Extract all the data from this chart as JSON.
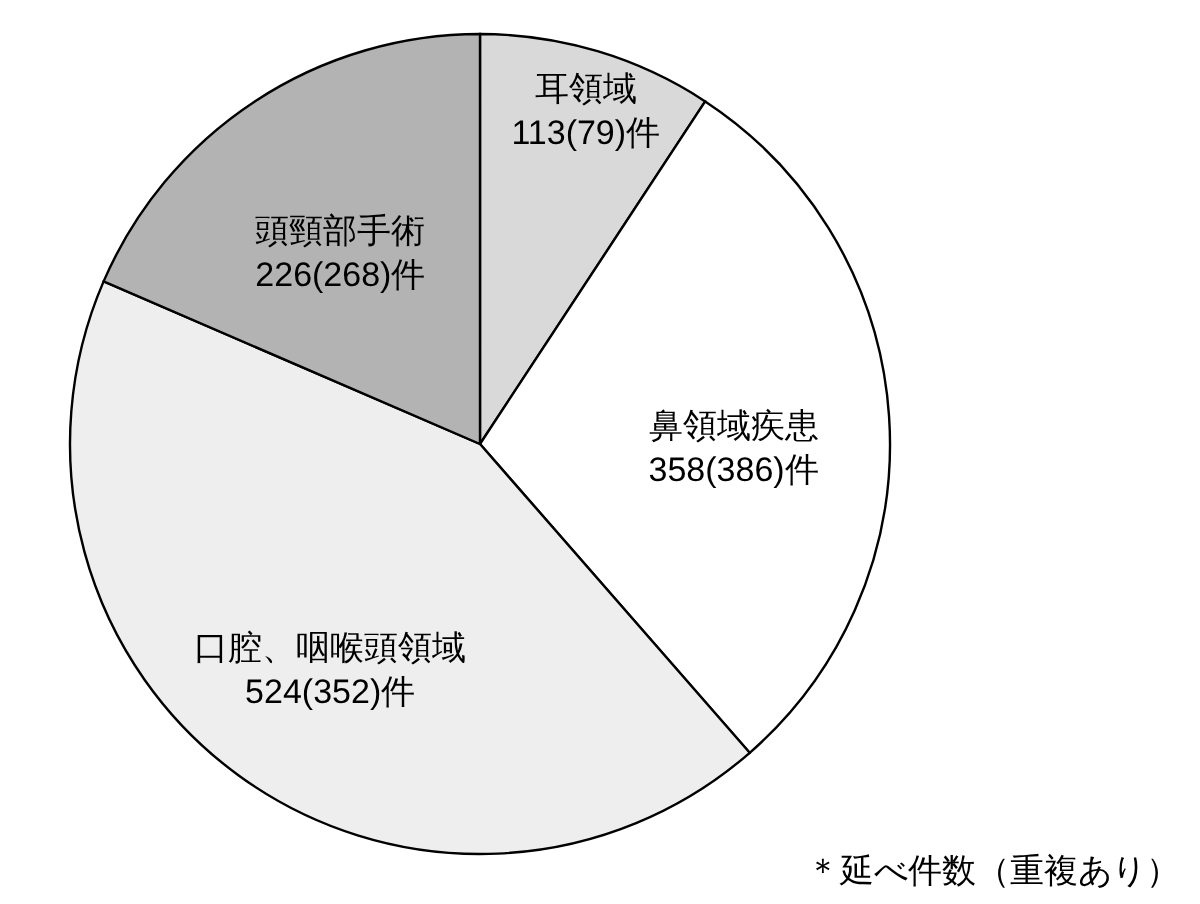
{
  "chart_data": {
    "type": "pie",
    "categories": [
      "耳領域",
      "鼻領域疾患",
      "口腔、咽喉頭領域",
      "頭頸部手術"
    ],
    "values": [
      113,
      358,
      524,
      226
    ],
    "value_labels": [
      "113(79)件",
      "358(386)件",
      "524(352)件",
      "226(268)件"
    ],
    "colors": [
      "#d9d9d9",
      "#ffffff",
      "#eeeeee",
      "#b3b3b3"
    ],
    "annotations": [
      "＊延べ件数（重複あり）"
    ]
  }
}
